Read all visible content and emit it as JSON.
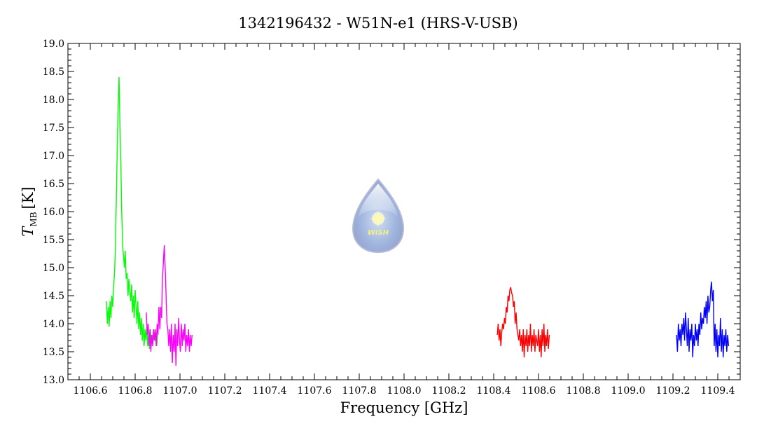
{
  "chart_data": {
    "type": "line",
    "title": "1342196432 - W51N-e1 (HRS-V-USB)",
    "xlabel": "Frequency [GHz]",
    "ylabel": {
      "symbol": "T",
      "subscript": "MB",
      "unit": "[K]"
    },
    "xlim": [
      1106.5,
      1109.5
    ],
    "ylim": [
      13.0,
      19.0
    ],
    "xticks": [
      1106.6,
      1106.8,
      1107.0,
      1107.2,
      1107.4,
      1107.6,
      1107.8,
      1108.0,
      1108.2,
      1108.4,
      1108.6,
      1108.8,
      1109.0,
      1109.2,
      1109.4
    ],
    "xtick_labels": [
      "1106.6",
      "1106.8",
      "1107.0",
      "1107.2",
      "1107.4",
      "1107.6",
      "1107.8",
      "1108.0",
      "1108.2",
      "1108.4",
      "1108.6",
      "1108.8",
      "1109.0",
      "1109.2",
      "1109.4"
    ],
    "yticks": [
      13.0,
      13.5,
      14.0,
      14.5,
      15.0,
      15.5,
      16.0,
      16.5,
      17.0,
      17.5,
      18.0,
      18.5,
      19.0
    ],
    "ytick_labels": [
      "13.0",
      "13.5",
      "14.0",
      "14.5",
      "15.0",
      "15.5",
      "16.0",
      "16.5",
      "17.0",
      "17.5",
      "18.0",
      "18.5",
      "19.0"
    ],
    "grid": false,
    "logo_text": "WISH",
    "series": [
      {
        "name": "green",
        "color": "#00ff00",
        "x_start": 1106.672,
        "x_step": 0.004,
        "values": [
          14.4,
          14.0,
          14.3,
          13.95,
          14.4,
          14.1,
          14.5,
          14.3,
          14.7,
          14.9,
          15.4,
          16.2,
          17.1,
          17.9,
          18.4,
          17.6,
          16.9,
          16.0,
          15.4,
          15.2,
          15.0,
          15.3,
          14.8,
          14.9,
          14.5,
          14.8,
          14.6,
          14.4,
          14.7,
          14.2,
          14.5,
          14.1,
          14.6,
          14.3,
          14.0,
          14.4,
          13.9,
          14.2,
          13.8,
          14.1,
          13.7,
          14.0,
          13.6,
          13.9,
          13.7,
          13.95,
          13.6,
          13.8,
          13.55,
          13.9,
          13.6,
          13.8,
          13.65,
          13.9,
          13.7,
          13.85,
          13.6,
          13.8
        ]
      },
      {
        "name": "magenta",
        "color": "#ff00ff",
        "x_start": 1106.85,
        "x_step": 0.004,
        "values": [
          14.2,
          13.8,
          14.0,
          13.6,
          13.9,
          13.5,
          13.8,
          13.6,
          13.9,
          13.7,
          13.9,
          13.6,
          14.0,
          13.8,
          14.3,
          13.9,
          14.3,
          14.1,
          14.8,
          15.1,
          15.4,
          15.0,
          14.5,
          14.0,
          13.9,
          13.6,
          13.9,
          13.5,
          14.0,
          13.3,
          13.8,
          13.5,
          14.0,
          13.25,
          13.9,
          13.6,
          14.1,
          13.7,
          13.5,
          14.0,
          13.6,
          13.9,
          13.7,
          14.0,
          13.5,
          13.8,
          13.6,
          13.9,
          13.5,
          13.8,
          13.6,
          13.8
        ]
      },
      {
        "name": "red",
        "color": "#ff0000",
        "x_start": 1108.416,
        "x_step": 0.004,
        "values": [
          13.8,
          14.0,
          13.7,
          13.9,
          13.6,
          13.85,
          14.0,
          13.9,
          14.1,
          14.0,
          14.3,
          14.2,
          14.5,
          14.4,
          14.6,
          14.65,
          14.55,
          14.5,
          14.3,
          14.4,
          14.0,
          14.2,
          13.9,
          13.8,
          13.7,
          13.9,
          13.6,
          13.8,
          13.5,
          13.9,
          13.4,
          13.8,
          13.6,
          13.9,
          13.5,
          13.8,
          13.6,
          14.0,
          13.5,
          13.8,
          13.6,
          13.9,
          13.5,
          13.8,
          13.7,
          13.6,
          13.9,
          13.5,
          13.8,
          13.4,
          13.9,
          13.6,
          14.0,
          13.5,
          13.8,
          13.6,
          13.9,
          13.55,
          13.8
        ]
      },
      {
        "name": "blue",
        "color": "#0000ff",
        "x_start": 1109.216,
        "x_step": 0.004,
        "values": [
          13.8,
          13.5,
          14.0,
          13.7,
          13.9,
          13.6,
          14.0,
          13.8,
          14.1,
          13.7,
          14.2,
          13.9,
          13.6,
          14.1,
          13.5,
          13.9,
          13.7,
          14.0,
          13.4,
          13.8,
          13.6,
          14.0,
          13.7,
          13.9,
          13.6,
          14.0,
          13.8,
          14.2,
          13.9,
          14.1,
          14.0,
          14.3,
          14.1,
          14.4,
          14.0,
          14.5,
          14.2,
          14.3,
          14.6,
          14.75,
          14.4,
          14.6,
          13.6,
          14.0,
          13.5,
          13.9,
          13.4,
          13.8,
          13.6,
          14.1,
          13.5,
          13.9,
          13.4,
          13.8,
          13.6,
          13.9,
          13.5,
          13.8,
          13.6
        ]
      }
    ]
  }
}
